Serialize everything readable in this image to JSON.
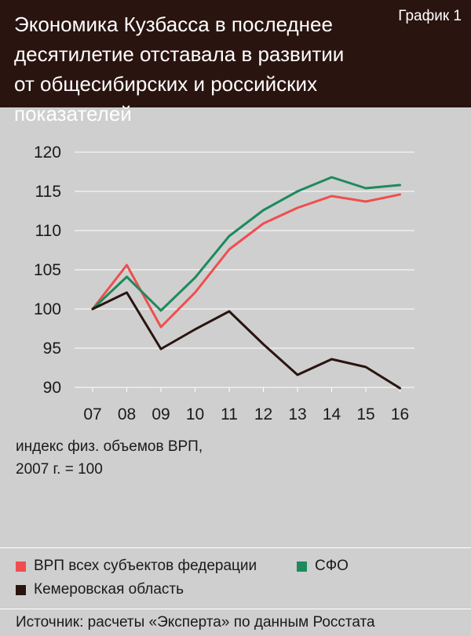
{
  "header": {
    "title": "Экономика Кузбасса в последнее\nдесятилетие отставала в развитии\nот общесибирских и российских показателей",
    "label": "График 1",
    "background": "#2a1410"
  },
  "axis_note": "индекс физ. объемов ВРП,\n2007 г. = 100",
  "source": "Источник: расчеты «Эксперта» по данным Росстата",
  "chart_data": {
    "type": "line",
    "categories": [
      "07",
      "08",
      "09",
      "10",
      "11",
      "12",
      "13",
      "14",
      "15",
      "16"
    ],
    "ylim": [
      90,
      120
    ],
    "yticks": [
      90,
      95,
      100,
      105,
      110,
      115,
      120
    ],
    "grid": true,
    "xlabel": "",
    "ylabel": "индекс физ. объемов ВРП, 2007 г. = 100",
    "legend_position": "bottom",
    "series": [
      {
        "name": "ВРП всех субъектов федерации",
        "color": "#f04e4e",
        "values": [
          100,
          105.6,
          97.7,
          102.1,
          107.6,
          110.9,
          112.9,
          114.4,
          113.7,
          114.6
        ]
      },
      {
        "name": "СФО",
        "color": "#1e8a5c",
        "values": [
          100,
          104.1,
          99.8,
          104.0,
          109.3,
          112.6,
          115.0,
          116.8,
          115.4,
          115.8
        ]
      },
      {
        "name": "Кемеровская область",
        "color": "#2a1410",
        "values": [
          100,
          102.1,
          94.9,
          97.4,
          99.7,
          95.5,
          91.6,
          93.6,
          92.6,
          89.9
        ]
      }
    ]
  }
}
